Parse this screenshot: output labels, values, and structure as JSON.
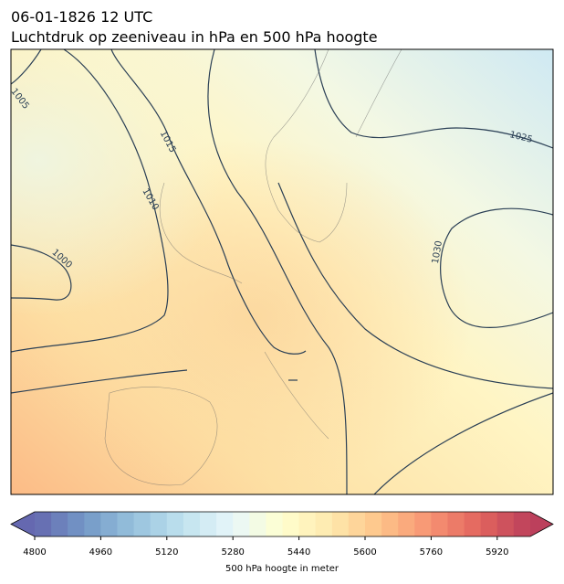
{
  "header": {
    "title": "06-01-1826 12 UTC",
    "subtitle": "Luchtdruk op zeeniveau in hPa en 500 hPa hoogte"
  },
  "map": {
    "contour_labels": [
      1005,
      1015,
      1010,
      1000,
      1025,
      1030
    ]
  },
  "colorbar": {
    "label": "500 hPa hoogte in meter",
    "lim": [
      4800,
      6000
    ],
    "ticks": [
      4800,
      4960,
      5120,
      5280,
      5440,
      5600,
      5760,
      5920
    ]
  }
}
